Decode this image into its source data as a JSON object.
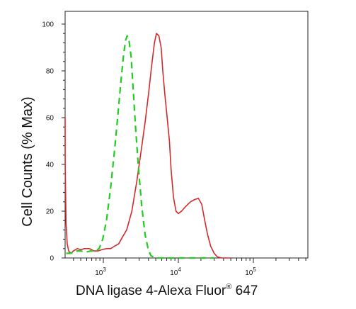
{
  "chart_data": {
    "type": "line",
    "xlabel": "DNA ligase 4-Alexa Fluor",
    "xlabel_sup": "®",
    "xlabel_tail": " 647",
    "ylabel": "Cell Counts (% Max)",
    "x_scale": "log",
    "xlim": [
      300,
      50000
    ],
    "ylim": [
      0,
      100
    ],
    "x_ticks": [
      {
        "value": 1000,
        "base": "10",
        "exp": "3"
      },
      {
        "value": 10000,
        "base": "10",
        "exp": "4"
      },
      {
        "value": 100000,
        "base": "10",
        "exp": "5"
      }
    ],
    "y_ticks": [
      {
        "value": 0,
        "label": "0"
      },
      {
        "value": 20,
        "label": "20"
      },
      {
        "value": 40,
        "label": "40"
      },
      {
        "value": 60,
        "label": "60"
      },
      {
        "value": 80,
        "label": "80"
      },
      {
        "value": 100,
        "label": "100"
      }
    ],
    "grid": false,
    "series": [
      {
        "color": "#d42a2a",
        "dash": "solid",
        "points": [
          [
            300,
            60
          ],
          [
            305,
            58
          ],
          [
            310,
            40
          ],
          [
            318,
            15
          ],
          [
            330,
            6
          ],
          [
            345,
            3
          ],
          [
            370,
            2
          ],
          [
            400,
            3
          ],
          [
            450,
            4
          ],
          [
            500,
            3.5
          ],
          [
            560,
            4
          ],
          [
            650,
            4
          ],
          [
            750,
            3
          ],
          [
            850,
            3
          ],
          [
            950,
            3.5
          ],
          [
            1100,
            4
          ],
          [
            1250,
            4
          ],
          [
            1400,
            5
          ],
          [
            1600,
            6
          ],
          [
            1800,
            9
          ],
          [
            2050,
            12
          ],
          [
            2400,
            20
          ],
          [
            2800,
            33
          ],
          [
            3200,
            46
          ],
          [
            3600,
            58
          ],
          [
            4000,
            70
          ],
          [
            4400,
            82
          ],
          [
            4800,
            92
          ],
          [
            5100,
            96
          ],
          [
            5500,
            95
          ],
          [
            5900,
            90
          ],
          [
            6200,
            80
          ],
          [
            6600,
            70
          ],
          [
            7100,
            60
          ],
          [
            7600,
            50
          ],
          [
            8000,
            38
          ],
          [
            8600,
            26
          ],
          [
            9300,
            20
          ],
          [
            10000,
            19
          ],
          [
            11000,
            20
          ],
          [
            12500,
            22
          ],
          [
            14500,
            24
          ],
          [
            16500,
            25
          ],
          [
            18500,
            25.5
          ],
          [
            20500,
            23
          ],
          [
            22500,
            16
          ],
          [
            24500,
            10
          ],
          [
            27000,
            5
          ],
          [
            30000,
            2
          ],
          [
            33000,
            0.5
          ],
          [
            38000,
            0
          ],
          [
            50000,
            0
          ]
        ]
      },
      {
        "color": "#22cc22",
        "dash": "dashed",
        "points": [
          [
            320,
            2
          ],
          [
            370,
            2
          ],
          [
            430,
            3
          ],
          [
            500,
            3
          ],
          [
            580,
            2.5
          ],
          [
            680,
            3
          ],
          [
            780,
            3
          ],
          [
            880,
            4
          ],
          [
            980,
            8
          ],
          [
            1100,
            16
          ],
          [
            1250,
            30
          ],
          [
            1400,
            45
          ],
          [
            1550,
            60
          ],
          [
            1700,
            74
          ],
          [
            1850,
            86
          ],
          [
            1980,
            93
          ],
          [
            2080,
            95
          ],
          [
            2200,
            93
          ],
          [
            2350,
            86
          ],
          [
            2500,
            72
          ],
          [
            2700,
            55
          ],
          [
            2950,
            38
          ],
          [
            3250,
            22
          ],
          [
            3600,
            10
          ],
          [
            3950,
            4
          ],
          [
            4300,
            1
          ],
          [
            5000,
            0
          ],
          [
            8000,
            0
          ],
          [
            20000,
            0
          ],
          [
            30000,
            0
          ]
        ]
      }
    ]
  }
}
